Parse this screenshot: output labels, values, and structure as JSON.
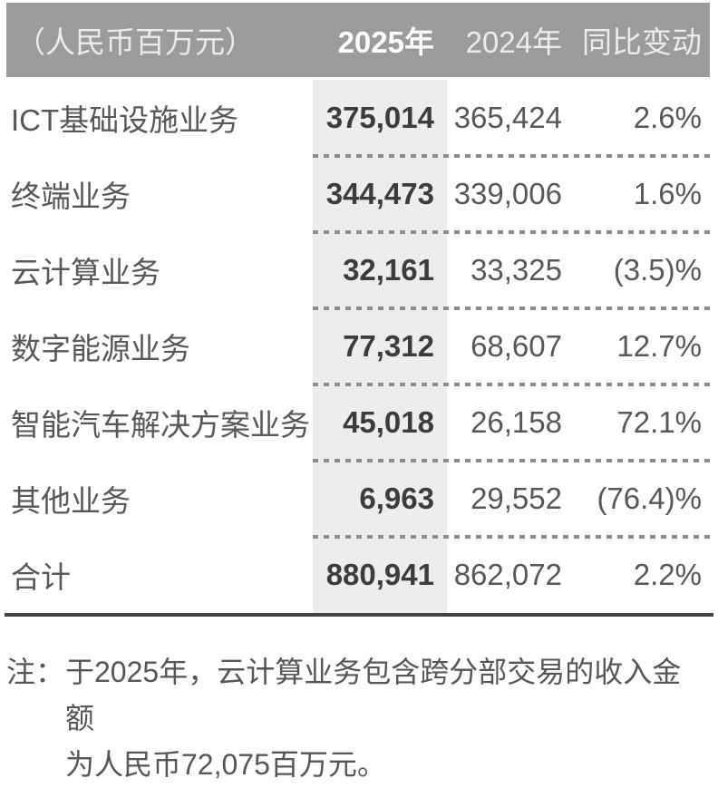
{
  "table": {
    "unit_label": "（人民币百万元）",
    "columns": {
      "y2025": "2025年",
      "y2024": "2024年",
      "change": "同比变动"
    },
    "rows": [
      {
        "label": "ICT基础设施业务",
        "y2025": "375,014",
        "y2024": "365,424",
        "change": "2.6%"
      },
      {
        "label": "终端业务",
        "y2025": "344,473",
        "y2024": "339,006",
        "change": "1.6%"
      },
      {
        "label": "云计算业务",
        "y2025": "32,161",
        "y2024": "33,325",
        "change": "(3.5)%"
      },
      {
        "label": "数字能源业务",
        "y2025": "77,312",
        "y2024": "68,607",
        "change": "12.7%"
      },
      {
        "label": "智能汽车解决方案业务",
        "y2025": "45,018",
        "y2024": "26,158",
        "change": "72.1%"
      },
      {
        "label": "其他业务",
        "y2025": "6,963",
        "y2024": "29,552",
        "change": "(76.4)%"
      }
    ],
    "total": {
      "label": "合计",
      "y2025": "880,941",
      "y2024": "862,072",
      "change": "2.2%"
    }
  },
  "footnote": {
    "prefix": "注：",
    "line1": "于2025年，云计算业务包含跨分部交易的收入金额",
    "line2": "为人民币72,075百万元。"
  },
  "colors": {
    "header_bg": "#9b9b9b",
    "header_text": "#ececec",
    "header_text_bold": "#ffffff",
    "column_highlight_bg": "#ededed",
    "text_regular": "#575757",
    "text_bold": "#3c3c3c",
    "dotted_rule": "#8c8c8c",
    "bottom_rule": "#424242"
  }
}
